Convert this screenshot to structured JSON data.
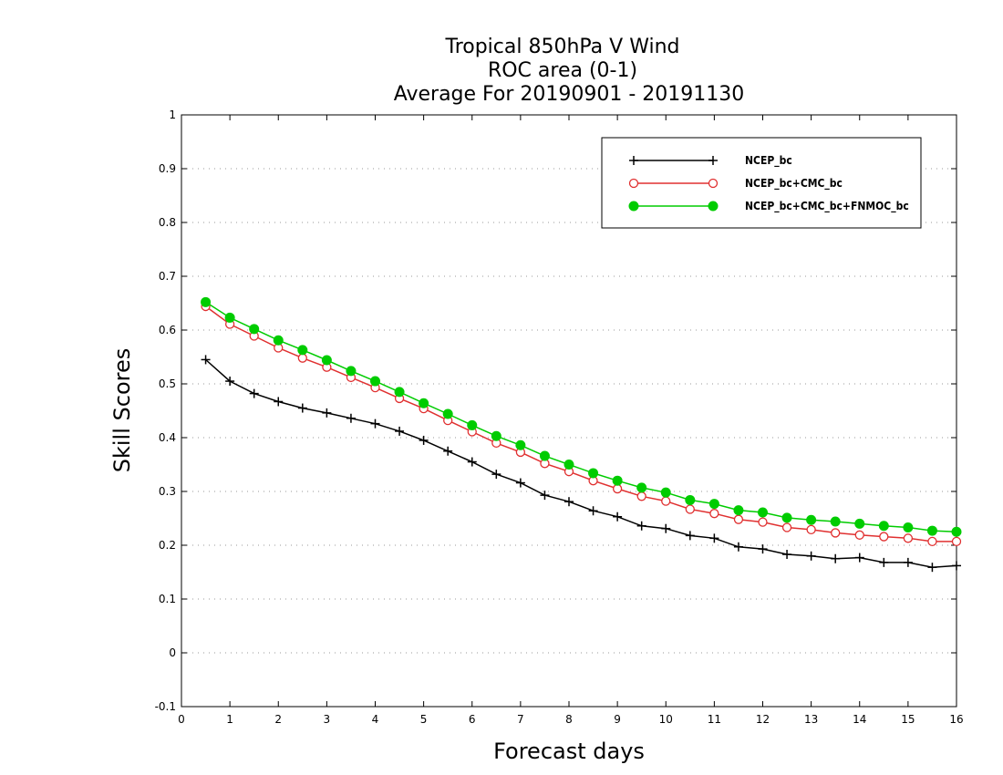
{
  "chart_data": {
    "type": "line",
    "title_lines": [
      "Tropical 850hPa V Wind",
      "ROC area (0-1)",
      "Average For 20190901 - 20191130"
    ],
    "xlabel": "Forecast days",
    "ylabel": "Skill Scores",
    "xlim": [
      0,
      16
    ],
    "ylim": [
      -0.1,
      1
    ],
    "x_ticks": [
      0,
      1,
      2,
      3,
      4,
      5,
      6,
      7,
      8,
      9,
      10,
      11,
      12,
      13,
      14,
      15,
      16
    ],
    "y_ticks": [
      -0.1,
      0,
      0.1,
      0.2,
      0.3,
      0.4,
      0.5,
      0.6,
      0.7,
      0.8,
      0.9,
      1
    ],
    "y_tick_labels": [
      "-0.1",
      "0",
      "0.1",
      "0.2",
      "0.3",
      "0.4",
      "0.5",
      "0.6",
      "0.7",
      "0.8",
      "0.9",
      "1"
    ],
    "grid": "horizontal dotted",
    "legend_position": "top-right",
    "x": [
      0.5,
      1,
      1.5,
      2,
      2.5,
      3,
      3.5,
      4,
      4.5,
      5,
      5.5,
      6,
      6.5,
      7,
      7.5,
      8,
      8.5,
      9,
      9.5,
      10,
      10.5,
      11,
      11.5,
      12,
      12.5,
      13,
      13.5,
      14,
      14.5,
      15,
      15.5,
      16
    ],
    "series": [
      {
        "name": "NCEP_bc",
        "color": "#000000",
        "marker": "plus",
        "values": [
          0.545,
          0.505,
          0.482,
          0.467,
          0.455,
          0.446,
          0.436,
          0.426,
          0.412,
          0.395,
          0.375,
          0.355,
          0.332,
          0.316,
          0.293,
          0.281,
          0.264,
          0.253,
          0.236,
          0.231,
          0.218,
          0.213,
          0.197,
          0.193,
          0.183,
          0.18,
          0.175,
          0.177,
          0.168,
          0.168,
          0.159,
          0.162
        ]
      },
      {
        "name": "NCEP_bc+CMC_bc",
        "color": "#e03030",
        "marker": "open-circle",
        "values": [
          0.644,
          0.611,
          0.589,
          0.567,
          0.548,
          0.531,
          0.512,
          0.493,
          0.473,
          0.454,
          0.432,
          0.411,
          0.39,
          0.373,
          0.352,
          0.337,
          0.32,
          0.305,
          0.291,
          0.282,
          0.267,
          0.259,
          0.248,
          0.243,
          0.233,
          0.229,
          0.223,
          0.219,
          0.216,
          0.213,
          0.207,
          0.207
        ]
      },
      {
        "name": "NCEP_bc+CMC_bc+FNMOC_bc",
        "color": "#00cc00",
        "marker": "filled-circle",
        "values": [
          0.652,
          0.623,
          0.602,
          0.581,
          0.563,
          0.544,
          0.524,
          0.505,
          0.485,
          0.464,
          0.444,
          0.423,
          0.403,
          0.386,
          0.366,
          0.35,
          0.334,
          0.32,
          0.307,
          0.298,
          0.284,
          0.277,
          0.265,
          0.261,
          0.251,
          0.247,
          0.244,
          0.24,
          0.236,
          0.233,
          0.227,
          0.225
        ]
      }
    ]
  }
}
